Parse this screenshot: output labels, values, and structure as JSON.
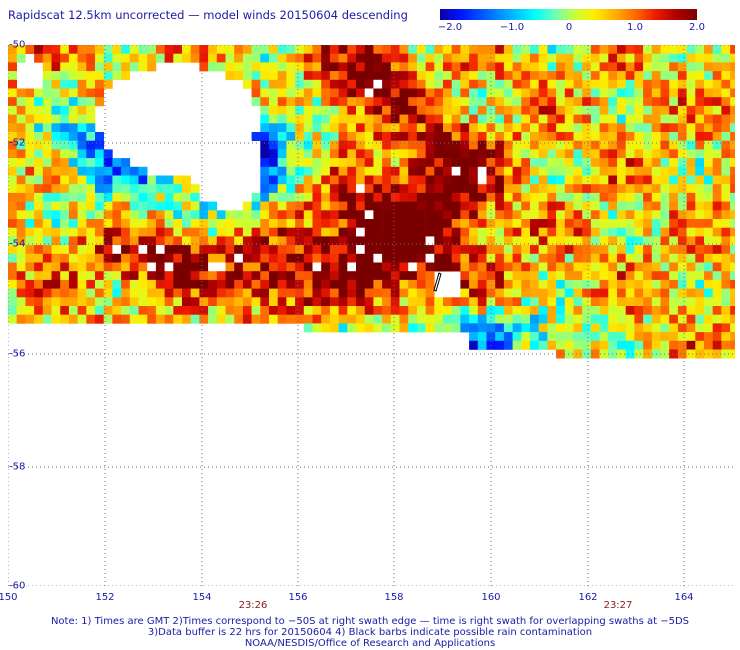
{
  "title": "Rapidscat 12.5km uncorrected — model winds 20150604 descending",
  "colorbar": {
    "labels": [
      "−2.0",
      "−1.0",
      "0",
      "1.0",
      "2.0"
    ],
    "min": -2.0,
    "max": 2.0
  },
  "axes": {
    "lat_labels": [
      "-50",
      "-52",
      "-54",
      "-56",
      "-58",
      "-60"
    ],
    "lon_labels": [
      "150",
      "152",
      "154",
      "156",
      "158",
      "160",
      "162",
      "164"
    ],
    "lat_range": [
      -60,
      -50
    ],
    "lon_range": [
      150,
      165
    ]
  },
  "swath_times": [
    "23:26",
    "23:27"
  ],
  "notes": {
    "line1": "Note: 1) Times are GMT 2)Times correspond to −50S at right swath edge — time is right swath for overlapping swaths at −5DS",
    "line2": "3)Data buffer is 22 hrs for 20150604 4) Black barbs indicate possible rain contamination",
    "line3": "NOAA/NESDIS/Office of Research and Applications"
  },
  "colors": {
    "label_blue": "#1a1aa8",
    "time_red": "#8a1a1a",
    "grid": "#6a6a9a"
  }
}
